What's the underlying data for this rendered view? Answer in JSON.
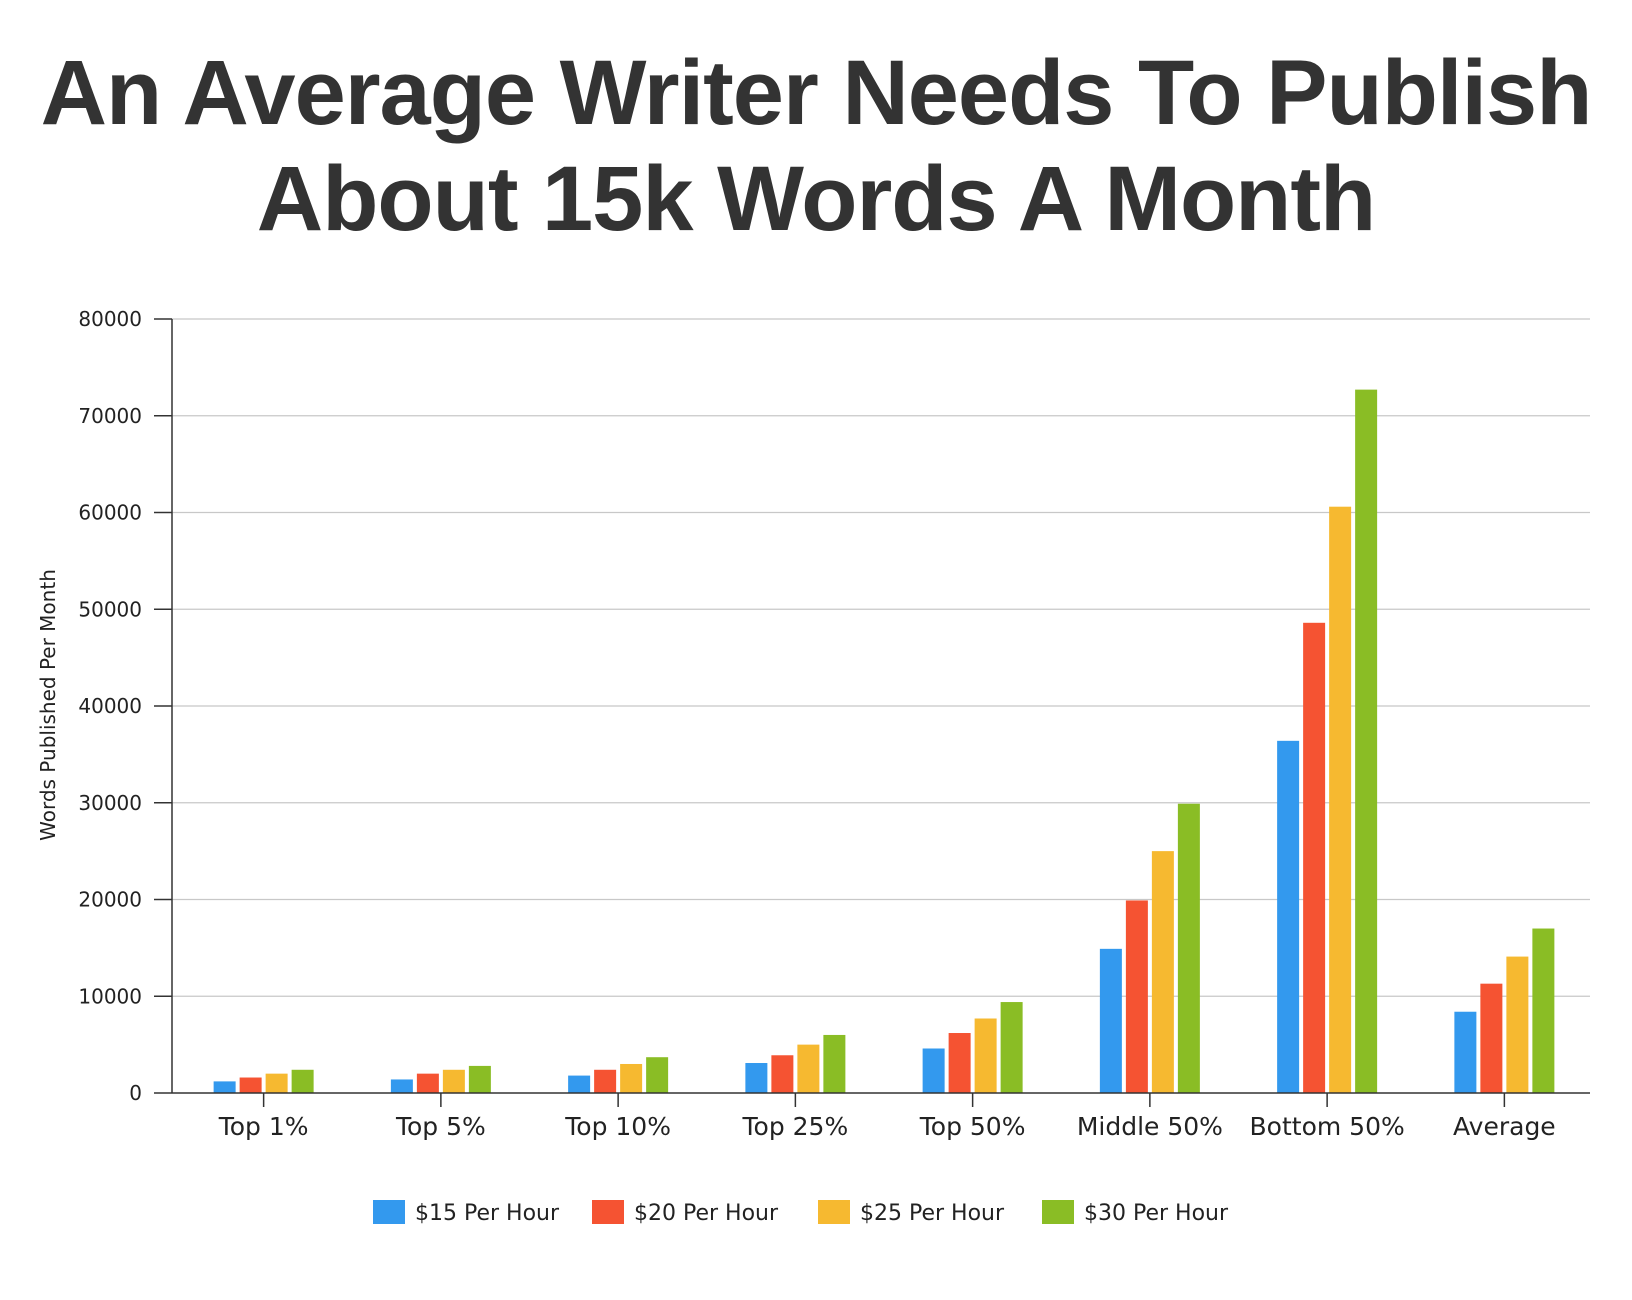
{
  "title_lines": [
    "An Average Writer Needs To Publish",
    "About 15k Words A Month"
  ],
  "chart_data": {
    "type": "bar",
    "title": "An Average Writer Needs To Publish About 15k Words A Month",
    "ylabel": "Words Published Per Month",
    "xlabel": "",
    "ylim": [
      0,
      80000
    ],
    "yticks": [
      0,
      10000,
      20000,
      30000,
      40000,
      50000,
      60000,
      70000,
      80000
    ],
    "grid": true,
    "legend_position": "bottom",
    "categories": [
      "Top 1%",
      "Top 5%",
      "Top 10%",
      "Top 25%",
      "Top 50%",
      "Middle 50%",
      "Bottom 50%",
      "Average"
    ],
    "series": [
      {
        "name": "$15 Per Hour",
        "color": "#3399ee",
        "values": [
          1200,
          1400,
          1800,
          3100,
          4600,
          14900,
          36400,
          8400
        ]
      },
      {
        "name": "$20 Per Hour",
        "color": "#f55332",
        "values": [
          1600,
          2000,
          2400,
          3900,
          6200,
          19900,
          48600,
          11300
        ]
      },
      {
        "name": "$25 Per Hour",
        "color": "#f6b930",
        "values": [
          2000,
          2400,
          3000,
          5000,
          7700,
          25000,
          60600,
          14100
        ]
      },
      {
        "name": "$30 Per Hour",
        "color": "#8abd25",
        "values": [
          2400,
          2800,
          3700,
          6000,
          9400,
          29900,
          72700,
          17000
        ]
      }
    ]
  }
}
